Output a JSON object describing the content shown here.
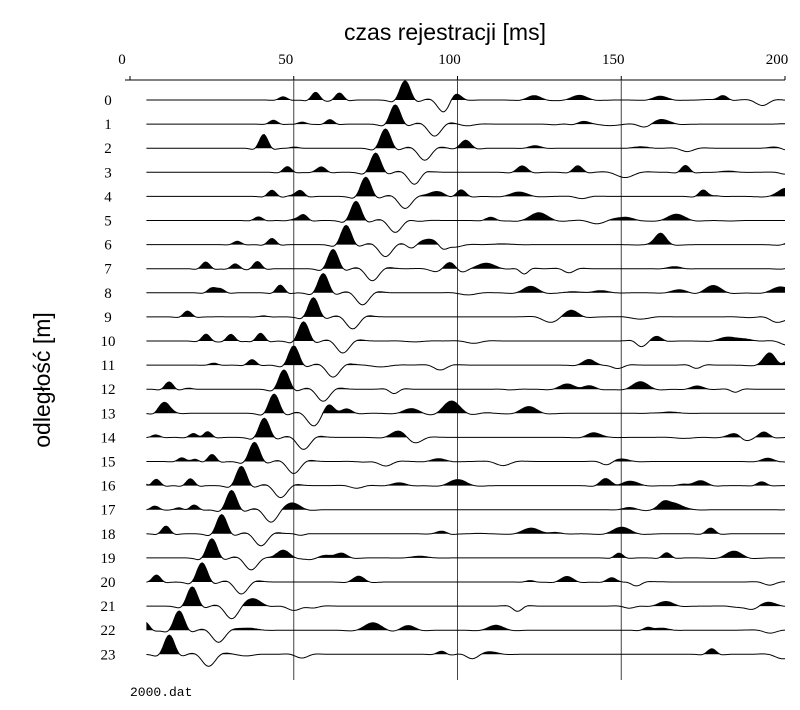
{
  "chart_data": {
    "type": "wiggle",
    "title": "czas rejestracji  [ms]",
    "y_label": "odległość [m]",
    "footer": "2000.dat",
    "categories": [
      "0",
      "1",
      "2",
      "3",
      "4",
      "5",
      "6",
      "7",
      "8",
      "9",
      "10",
      "11",
      "12",
      "13",
      "14",
      "15",
      "16",
      "17",
      "18",
      "19",
      "20",
      "21",
      "22",
      "23"
    ],
    "values": [
      84,
      81,
      78,
      75,
      72,
      69,
      66,
      62,
      59,
      56,
      53,
      50,
      47,
      44,
      41,
      38,
      34,
      31,
      28,
      25,
      22,
      19,
      15,
      12
    ],
    "color": "#000000",
    "xlim": [
      0,
      200
    ],
    "xticks": [
      0,
      50,
      100,
      150,
      200
    ],
    "grid": true
  }
}
